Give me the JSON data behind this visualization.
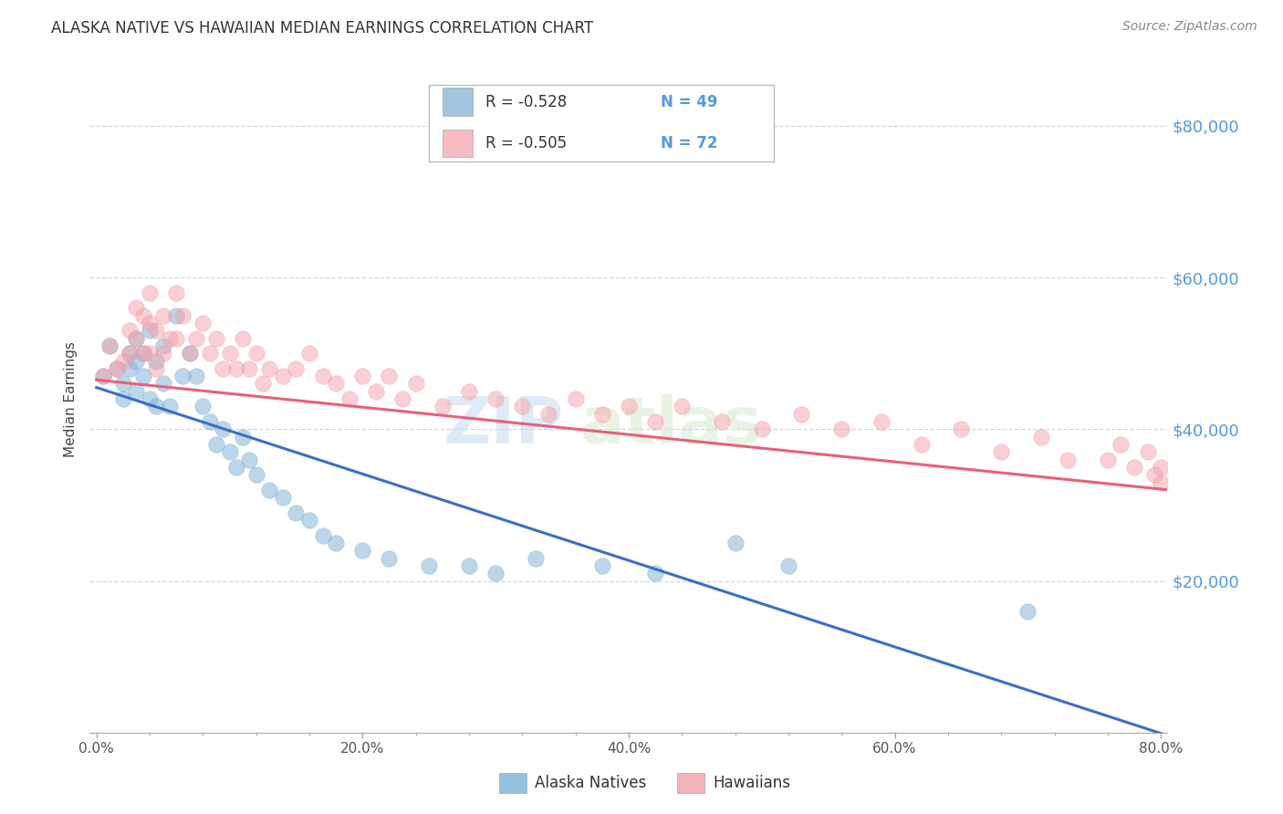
{
  "title": "ALASKA NATIVE VS HAWAIIAN MEDIAN EARNINGS CORRELATION CHART",
  "source": "Source: ZipAtlas.com",
  "ylabel": "Median Earnings",
  "xlabel_ticks": [
    "0.0%",
    "",
    "",
    "",
    "",
    "20.0%",
    "",
    "",
    "",
    "",
    "40.0%",
    "",
    "",
    "",
    "",
    "60.0%",
    "",
    "",
    "",
    "",
    "80.0%"
  ],
  "xlabel_vals": [
    0.0,
    0.04,
    0.08,
    0.12,
    0.16,
    0.2,
    0.24,
    0.28,
    0.32,
    0.36,
    0.4,
    0.44,
    0.48,
    0.52,
    0.56,
    0.6,
    0.64,
    0.68,
    0.72,
    0.76,
    0.8
  ],
  "xlabel_major_ticks": [
    0.0,
    0.2,
    0.4,
    0.6,
    0.8
  ],
  "xlabel_major_labels": [
    "0.0%",
    "20.0%",
    "40.0%",
    "60.0%",
    "80.0%"
  ],
  "ytick_vals": [
    0,
    20000,
    40000,
    60000,
    80000
  ],
  "ytick_labels": [
    "",
    "$20,000",
    "$40,000",
    "$60,000",
    "$80,000"
  ],
  "ylim": [
    0,
    88000
  ],
  "xlim": [
    -0.005,
    0.805
  ],
  "background_color": "#ffffff",
  "plot_bg_color": "#ffffff",
  "grid_color": "#cccccc",
  "blue_color": "#7bafd4",
  "pink_color": "#f4a0a8",
  "blue_line_color": "#3a6fc4",
  "pink_line_color": "#e8607a",
  "ytick_color": "#5599dd",
  "title_color": "#333333",
  "watermark_zip": "ZIP",
  "watermark_atlas": "atlas",
  "legend_R_blue": "R = -0.528",
  "legend_N_blue": "N = 49",
  "legend_R_pink": "R = -0.505",
  "legend_N_pink": "N = 72",
  "legend_label_blue": "Alaska Natives",
  "legend_label_pink": "Hawaiians",
  "blue_intercept": 45500,
  "blue_slope": -57000,
  "pink_intercept": 46500,
  "pink_slope": -18000,
  "blue_x": [
    0.005,
    0.01,
    0.015,
    0.02,
    0.02,
    0.025,
    0.025,
    0.03,
    0.03,
    0.03,
    0.035,
    0.035,
    0.04,
    0.04,
    0.045,
    0.045,
    0.05,
    0.05,
    0.055,
    0.06,
    0.065,
    0.07,
    0.075,
    0.08,
    0.085,
    0.09,
    0.095,
    0.1,
    0.105,
    0.11,
    0.115,
    0.12,
    0.13,
    0.14,
    0.15,
    0.16,
    0.17,
    0.18,
    0.2,
    0.22,
    0.25,
    0.28,
    0.3,
    0.33,
    0.38,
    0.42,
    0.48,
    0.52,
    0.7
  ],
  "blue_y": [
    47000,
    51000,
    48000,
    46000,
    44000,
    50000,
    48000,
    52000,
    49000,
    45000,
    50000,
    47000,
    53000,
    44000,
    49000,
    43000,
    51000,
    46000,
    43000,
    55000,
    47000,
    50000,
    47000,
    43000,
    41000,
    38000,
    40000,
    37000,
    35000,
    39000,
    36000,
    34000,
    32000,
    31000,
    29000,
    28000,
    26000,
    25000,
    24000,
    23000,
    22000,
    22000,
    21000,
    23000,
    22000,
    21000,
    25000,
    22000,
    16000
  ],
  "pink_x": [
    0.005,
    0.01,
    0.015,
    0.02,
    0.025,
    0.025,
    0.03,
    0.03,
    0.035,
    0.035,
    0.04,
    0.04,
    0.04,
    0.045,
    0.045,
    0.05,
    0.05,
    0.055,
    0.06,
    0.06,
    0.065,
    0.07,
    0.075,
    0.08,
    0.085,
    0.09,
    0.095,
    0.1,
    0.105,
    0.11,
    0.115,
    0.12,
    0.125,
    0.13,
    0.14,
    0.15,
    0.16,
    0.17,
    0.18,
    0.19,
    0.2,
    0.21,
    0.22,
    0.23,
    0.24,
    0.26,
    0.28,
    0.3,
    0.32,
    0.34,
    0.36,
    0.38,
    0.4,
    0.42,
    0.44,
    0.47,
    0.5,
    0.53,
    0.56,
    0.59,
    0.62,
    0.65,
    0.68,
    0.71,
    0.73,
    0.76,
    0.77,
    0.78,
    0.79,
    0.795,
    0.8,
    0.8
  ],
  "pink_y": [
    47000,
    51000,
    48000,
    49000,
    53000,
    50000,
    56000,
    52000,
    55000,
    50000,
    58000,
    54000,
    50000,
    53000,
    48000,
    55000,
    50000,
    52000,
    58000,
    52000,
    55000,
    50000,
    52000,
    54000,
    50000,
    52000,
    48000,
    50000,
    48000,
    52000,
    48000,
    50000,
    46000,
    48000,
    47000,
    48000,
    50000,
    47000,
    46000,
    44000,
    47000,
    45000,
    47000,
    44000,
    46000,
    43000,
    45000,
    44000,
    43000,
    42000,
    44000,
    42000,
    43000,
    41000,
    43000,
    41000,
    40000,
    42000,
    40000,
    41000,
    38000,
    40000,
    37000,
    39000,
    36000,
    36000,
    38000,
    35000,
    37000,
    34000,
    33000,
    35000
  ]
}
